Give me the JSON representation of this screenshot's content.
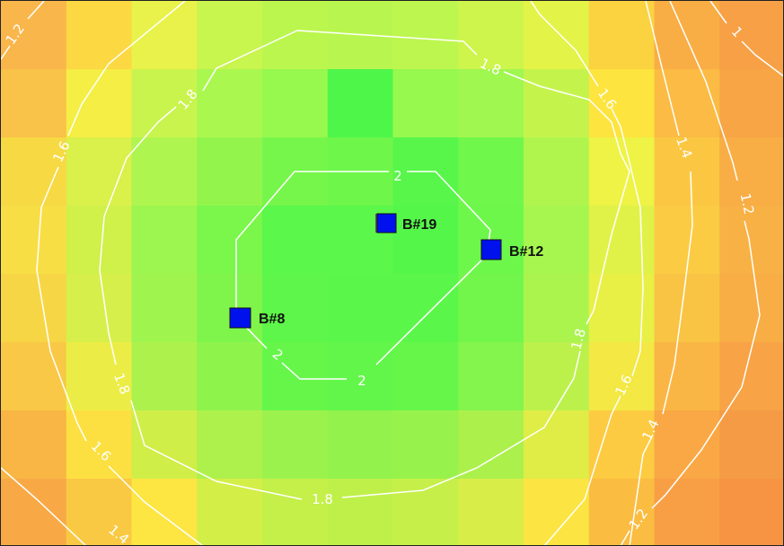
{
  "map": {
    "type": "heatmap-contour",
    "grid": {
      "rows": 8,
      "cols": 12,
      "colors": [
        [
          "#f9b64b",
          "#fcd842",
          "#e9f24a",
          "#c8f54e",
          "#bbf64e",
          "#b8f64f",
          "#bdf64e",
          "#cdf54c",
          "#e4f347",
          "#fbd240",
          "#f8ae45",
          "#f7a045"
        ],
        [
          "#f9c248",
          "#f4ee45",
          "#c9f44e",
          "#aaf750",
          "#97f84e",
          "#4ef64a",
          "#97f84e",
          "#a0f74f",
          "#c4f44c",
          "#fde43f",
          "#fbbb44",
          "#f7a545"
        ],
        [
          "#f7d944",
          "#daf04b",
          "#aff550",
          "#93f54c",
          "#76f64a",
          "#6ff64a",
          "#58f64a",
          "#70f74b",
          "#b0f54d",
          "#eef345",
          "#fbc743",
          "#f8ad45"
        ],
        [
          "#f8de45",
          "#d0f04a",
          "#9cf64f",
          "#7bf64b",
          "#5bf74a",
          "#5bf74a",
          "#55f64a",
          "#6ef74b",
          "#a6f64f",
          "#e0f247",
          "#fbcb43",
          "#f8b145"
        ],
        [
          "#f7d646",
          "#d7ef4a",
          "#a0f44e",
          "#7ff54b",
          "#5ef64a",
          "#5af74a",
          "#5bf64a",
          "#73f64b",
          "#abf44e",
          "#e8f046",
          "#f9c444",
          "#f8ad45"
        ],
        [
          "#f9c846",
          "#ebed46",
          "#adf14d",
          "#8ef44c",
          "#66f64a",
          "#62f64a",
          "#66f64a",
          "#83f54c",
          "#bcf14c",
          "#f3e844",
          "#fab644",
          "#f7a346"
        ],
        [
          "#f9b644",
          "#fce041",
          "#d0ee48",
          "#aef04c",
          "#9cf24d",
          "#93f24c",
          "#98f24c",
          "#acf04c",
          "#dfed46",
          "#fdcb41",
          "#f9a845",
          "#f69b45"
        ],
        [
          "#f8a946",
          "#f9c943",
          "#fde542",
          "#d4ee48",
          "#c5ef49",
          "#bff04a",
          "#c6ef49",
          "#d8ed48",
          "#fce442",
          "#fabd42",
          "#f89f45",
          "#f69444"
        ]
      ]
    },
    "contours": [
      {
        "value": 2,
        "label": "2"
      },
      {
        "value": 1.8,
        "label": "1.8"
      },
      {
        "value": 1.6,
        "label": "1.6"
      },
      {
        "value": 1.4,
        "label": "1.4"
      },
      {
        "value": 1.2,
        "label": "1.2"
      },
      {
        "value": 1,
        "label": "1"
      }
    ],
    "markers": [
      {
        "id": "B#19",
        "label": "B#19",
        "color": "#0011ee"
      },
      {
        "id": "B#12",
        "label": "B#12",
        "color": "#0011ee"
      },
      {
        "id": "B#8",
        "label": "B#8",
        "color": "#0011ee"
      }
    ],
    "contour_color": "#ffffff"
  }
}
